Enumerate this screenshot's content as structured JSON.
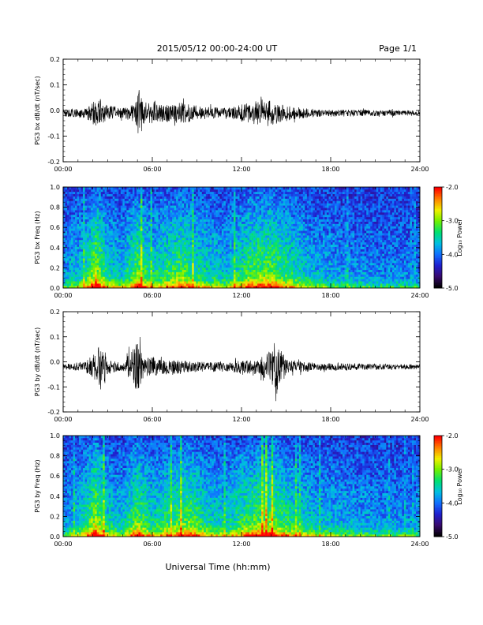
{
  "header": {
    "title": "2015/05/12  00:00-24:00 UT",
    "page": "Page 1/1"
  },
  "colors": {
    "trace": "#000000",
    "colormap": [
      "#000000",
      "#3a0a6e",
      "#2020d0",
      "#1070ff",
      "#00c0e0",
      "#00e070",
      "#70f000",
      "#f0f000",
      "#ff8000",
      "#ff0000"
    ]
  },
  "xaxis": {
    "label": "Universal Time (hh:mm)",
    "ticks": [
      "00:00",
      "06:00",
      "12:00",
      "18:00",
      "24:00"
    ]
  },
  "colorbar": {
    "label": "Log₁₀ Power",
    "ticks": [
      "-2.0",
      "-3.0",
      "-4.0",
      "-5.0"
    ],
    "range": [
      -5.0,
      -2.0
    ]
  },
  "chart_data": [
    {
      "type": "line",
      "ylabel": "PG3 bx dB/dt (nT/sec)",
      "xlim": [
        "00:00",
        "24:00"
      ],
      "ylim": [
        -0.2,
        0.2
      ],
      "yticks": [
        "0.2",
        "0.1",
        "0.0",
        "-0.1",
        "-0.2"
      ],
      "baseline": -0.01,
      "envelope": [
        {
          "t": 0.0,
          "a": 0.015
        },
        {
          "t": 1.5,
          "a": 0.02
        },
        {
          "t": 2.0,
          "a": 0.045
        },
        {
          "t": 2.5,
          "a": 0.055
        },
        {
          "t": 3.0,
          "a": 0.03
        },
        {
          "t": 4.0,
          "a": 0.02
        },
        {
          "t": 4.9,
          "a": 0.04
        },
        {
          "t": 5.1,
          "a": 0.1
        },
        {
          "t": 5.5,
          "a": 0.045
        },
        {
          "t": 6.5,
          "a": 0.035
        },
        {
          "t": 8.0,
          "a": 0.04
        },
        {
          "t": 9.5,
          "a": 0.025
        },
        {
          "t": 11.0,
          "a": 0.02
        },
        {
          "t": 12.5,
          "a": 0.04
        },
        {
          "t": 13.5,
          "a": 0.055
        },
        {
          "t": 14.5,
          "a": 0.04
        },
        {
          "t": 15.5,
          "a": 0.025
        },
        {
          "t": 17.0,
          "a": 0.015
        },
        {
          "t": 24.0,
          "a": 0.01
        }
      ]
    },
    {
      "type": "heatmap",
      "ylabel": "PG3 bx Freq (Hz)",
      "xlim": [
        "00:00",
        "24:00"
      ],
      "ylim": [
        0.0,
        1.0
      ],
      "yticks": [
        "1.0",
        "0.8",
        "0.6",
        "0.4",
        "0.2",
        "0.0"
      ],
      "activity": [
        {
          "t": 0.0,
          "a": 0.3
        },
        {
          "t": 1.5,
          "a": 0.55
        },
        {
          "t": 2.2,
          "a": 1.0
        },
        {
          "t": 3.0,
          "a": 0.55
        },
        {
          "t": 4.0,
          "a": 0.45
        },
        {
          "t": 5.0,
          "a": 0.85
        },
        {
          "t": 6.0,
          "a": 0.55
        },
        {
          "t": 8.0,
          "a": 0.8
        },
        {
          "t": 9.0,
          "a": 0.6
        },
        {
          "t": 11.0,
          "a": 0.45
        },
        {
          "t": 12.8,
          "a": 0.8
        },
        {
          "t": 14.0,
          "a": 0.85
        },
        {
          "t": 15.5,
          "a": 0.6
        },
        {
          "t": 17.0,
          "a": 0.4
        },
        {
          "t": 20.0,
          "a": 0.3
        },
        {
          "t": 24.0,
          "a": 0.25
        }
      ]
    },
    {
      "type": "line",
      "ylabel": "PG3 by dB/dt (nT/sec)",
      "xlim": [
        "00:00",
        "24:00"
      ],
      "ylim": [
        -0.2,
        0.2
      ],
      "yticks": [
        "0.2",
        "0.1",
        "0.0",
        "-0.1",
        "-0.2"
      ],
      "baseline": -0.02,
      "envelope": [
        {
          "t": 0.0,
          "a": 0.01
        },
        {
          "t": 1.5,
          "a": 0.02
        },
        {
          "t": 2.2,
          "a": 0.06
        },
        {
          "t": 2.6,
          "a": 0.1
        },
        {
          "t": 3.0,
          "a": 0.03
        },
        {
          "t": 4.0,
          "a": 0.015
        },
        {
          "t": 5.0,
          "a": 0.1
        },
        {
          "t": 5.5,
          "a": 0.04
        },
        {
          "t": 7.0,
          "a": 0.03
        },
        {
          "t": 9.0,
          "a": 0.02
        },
        {
          "t": 11.0,
          "a": 0.02
        },
        {
          "t": 13.0,
          "a": 0.03
        },
        {
          "t": 14.0,
          "a": 0.07
        },
        {
          "t": 14.3,
          "a": 0.12
        },
        {
          "t": 15.0,
          "a": 0.03
        },
        {
          "t": 17.0,
          "a": 0.015
        },
        {
          "t": 24.0,
          "a": 0.01
        }
      ]
    },
    {
      "type": "heatmap",
      "ylabel": "PG3 by Freq (Hz)",
      "xlim": [
        "00:00",
        "24:00"
      ],
      "ylim": [
        0.0,
        1.0
      ],
      "yticks": [
        "1.0",
        "0.8",
        "0.6",
        "0.4",
        "0.2",
        "0.0"
      ],
      "activity": [
        {
          "t": 0.0,
          "a": 0.3
        },
        {
          "t": 1.5,
          "a": 0.6
        },
        {
          "t": 2.2,
          "a": 1.0
        },
        {
          "t": 3.0,
          "a": 0.55
        },
        {
          "t": 4.0,
          "a": 0.45
        },
        {
          "t": 5.0,
          "a": 0.85
        },
        {
          "t": 6.0,
          "a": 0.55
        },
        {
          "t": 8.5,
          "a": 0.85
        },
        {
          "t": 9.5,
          "a": 0.6
        },
        {
          "t": 11.0,
          "a": 0.5
        },
        {
          "t": 12.8,
          "a": 0.8
        },
        {
          "t": 14.0,
          "a": 0.85
        },
        {
          "t": 15.5,
          "a": 0.6
        },
        {
          "t": 17.0,
          "a": 0.45
        },
        {
          "t": 20.0,
          "a": 0.35
        },
        {
          "t": 24.0,
          "a": 0.3
        }
      ]
    }
  ]
}
